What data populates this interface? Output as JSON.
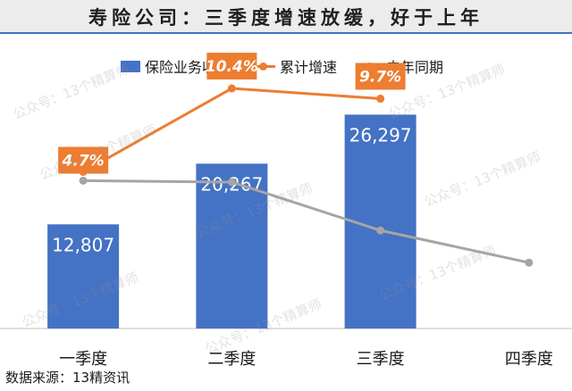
{
  "title": "寿险公司：三季度增速放缓，好于上年",
  "footer": "数据来源：13精资讯",
  "watermark": "公众号：13个精算师",
  "colors": {
    "bar": "#4472c4",
    "growth": "#ed7d31",
    "last_year": "#a5a5a5",
    "title_rule": "#4472c4"
  },
  "chart_data": {
    "type": "bar",
    "categories": [
      "一季度",
      "二季度",
      "三季度",
      "四季度"
    ],
    "legend_position": "top",
    "grid": false,
    "series": [
      {
        "name": "保险业务收入",
        "kind": "bar",
        "axis": "left",
        "values": [
          12807,
          20267,
          26297,
          null
        ],
        "labels": [
          "12,807",
          "20,267",
          "26,297",
          ""
        ]
      },
      {
        "name": "累计增速",
        "kind": "line",
        "axis": "right",
        "values": [
          4.7,
          10.4,
          9.7,
          null
        ],
        "labels": [
          "4.7%",
          "10.4%",
          "9.7%",
          ""
        ]
      },
      {
        "name": "去年同期",
        "kind": "line",
        "axis": "right",
        "values": [
          4.1,
          4.0,
          0.7,
          -1.5
        ],
        "labels": [
          "",
          "",
          "",
          ""
        ]
      }
    ],
    "ylim_left": [
      0,
      36000
    ],
    "ylim_right": [
      -6,
      14
    ]
  }
}
